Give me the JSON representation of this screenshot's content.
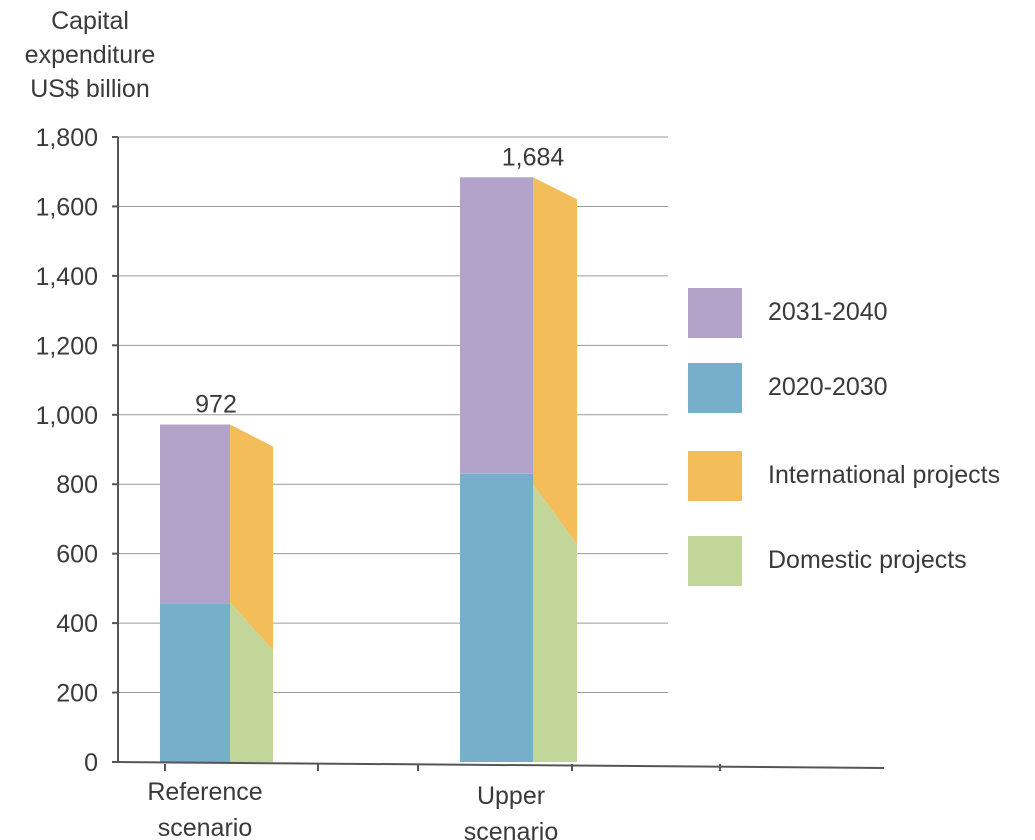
{
  "chart_data": {
    "type": "bar",
    "ylabel": [
      "Capital",
      "expenditure",
      "US$ billion"
    ],
    "ylim": [
      0,
      1800
    ],
    "yticks": [
      0,
      200,
      400,
      600,
      800,
      1000,
      1200,
      1400,
      1600,
      1800
    ],
    "ytick_labels": [
      "0",
      "200",
      "400",
      "600",
      "800",
      "1,000",
      "1,200",
      "1,400",
      "1,600",
      "1,800"
    ],
    "grid": true,
    "legend_position": "right",
    "categories": [
      "Reference scenario",
      "Upper scenario"
    ],
    "category_labels": [
      [
        "Reference",
        "scenario"
      ],
      [
        "Upper",
        "scenario"
      ]
    ],
    "totals": [
      972,
      1684
    ],
    "total_labels": [
      "972",
      "1,684"
    ],
    "series": [
      {
        "key": "2020_2030",
        "name": "2020-2030",
        "stack": "period",
        "color": "#77afcb",
        "values": [
          455,
          830
        ]
      },
      {
        "key": "2031_2040",
        "name": "2031-2040",
        "stack": "period",
        "color": "#b3a3c9",
        "values": [
          517,
          854
        ]
      },
      {
        "key": "domestic",
        "name": "Domestic projects",
        "stack": "project_type",
        "color": "#c3d699",
        "values": [
          460,
          800
        ]
      },
      {
        "key": "international",
        "name": "International projects",
        "stack": "project_type",
        "color": "#f3bd5a",
        "values": [
          512,
          884
        ]
      }
    ],
    "legend_order": [
      "2031-2040",
      "2020-2030",
      "International projects",
      "Domestic projects"
    ]
  }
}
